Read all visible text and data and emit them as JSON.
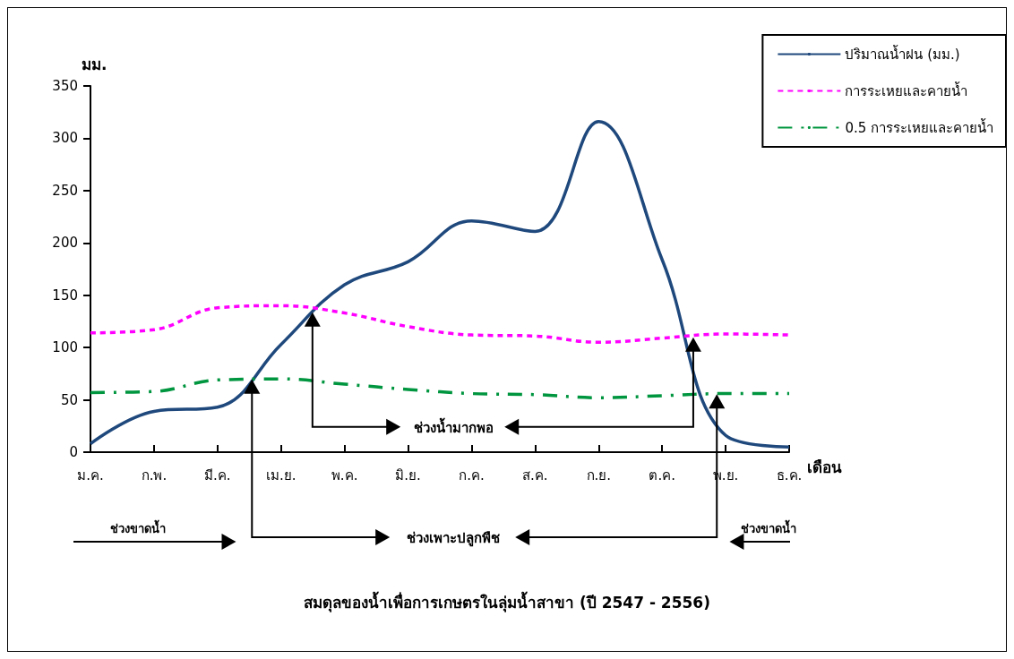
{
  "chart_data": {
    "type": "line",
    "title": "สมดุลของน้ำเพื่อการเกษตรในลุ่มน้ำสาขา (ปี 2547 - 2556)",
    "xlabel": "เดือน",
    "ylabel": "มม.",
    "categories": [
      "ม.ค.",
      "ก.พ.",
      "มี.ค.",
      "เม.ย.",
      "พ.ค.",
      "มิ.ย.",
      "ก.ค.",
      "ส.ค.",
      "ก.ย.",
      "ต.ค.",
      "พ.ย.",
      "ธ.ค."
    ],
    "series": [
      {
        "name": "ปริมาณน้ำฝน (มม.)",
        "color": "#1f497d",
        "line_style": "solid",
        "values": [
          8,
          39,
          43,
          103,
          160,
          182,
          221,
          211,
          316,
          184,
          16,
          5
        ]
      },
      {
        "name": "การระเหยและคายน้ำ",
        "color": "#ff00ff",
        "line_style": "dashed",
        "values": [
          114,
          117,
          138,
          140,
          133,
          120,
          112,
          111,
          105,
          109,
          113,
          112
        ]
      },
      {
        "name": "0.5 การระเหยและคายน้ำ",
        "color": "#00953f",
        "line_style": "dashdot",
        "values": [
          57,
          58,
          69,
          70,
          65,
          60,
          56,
          55,
          52,
          54,
          56,
          56
        ]
      }
    ],
    "ylim": [
      0,
      350
    ],
    "yticks": [
      0,
      50,
      100,
      150,
      200,
      250,
      300,
      350
    ],
    "grid": false,
    "legend": "top right",
    "marker": "none",
    "annotations": [
      "ช่วงน้ำมากพอ",
      "ช่วงเพาะปลูกพืช",
      "ช่วงขาดน้ำ",
      "ช่วงขาดน้ำ"
    ]
  }
}
